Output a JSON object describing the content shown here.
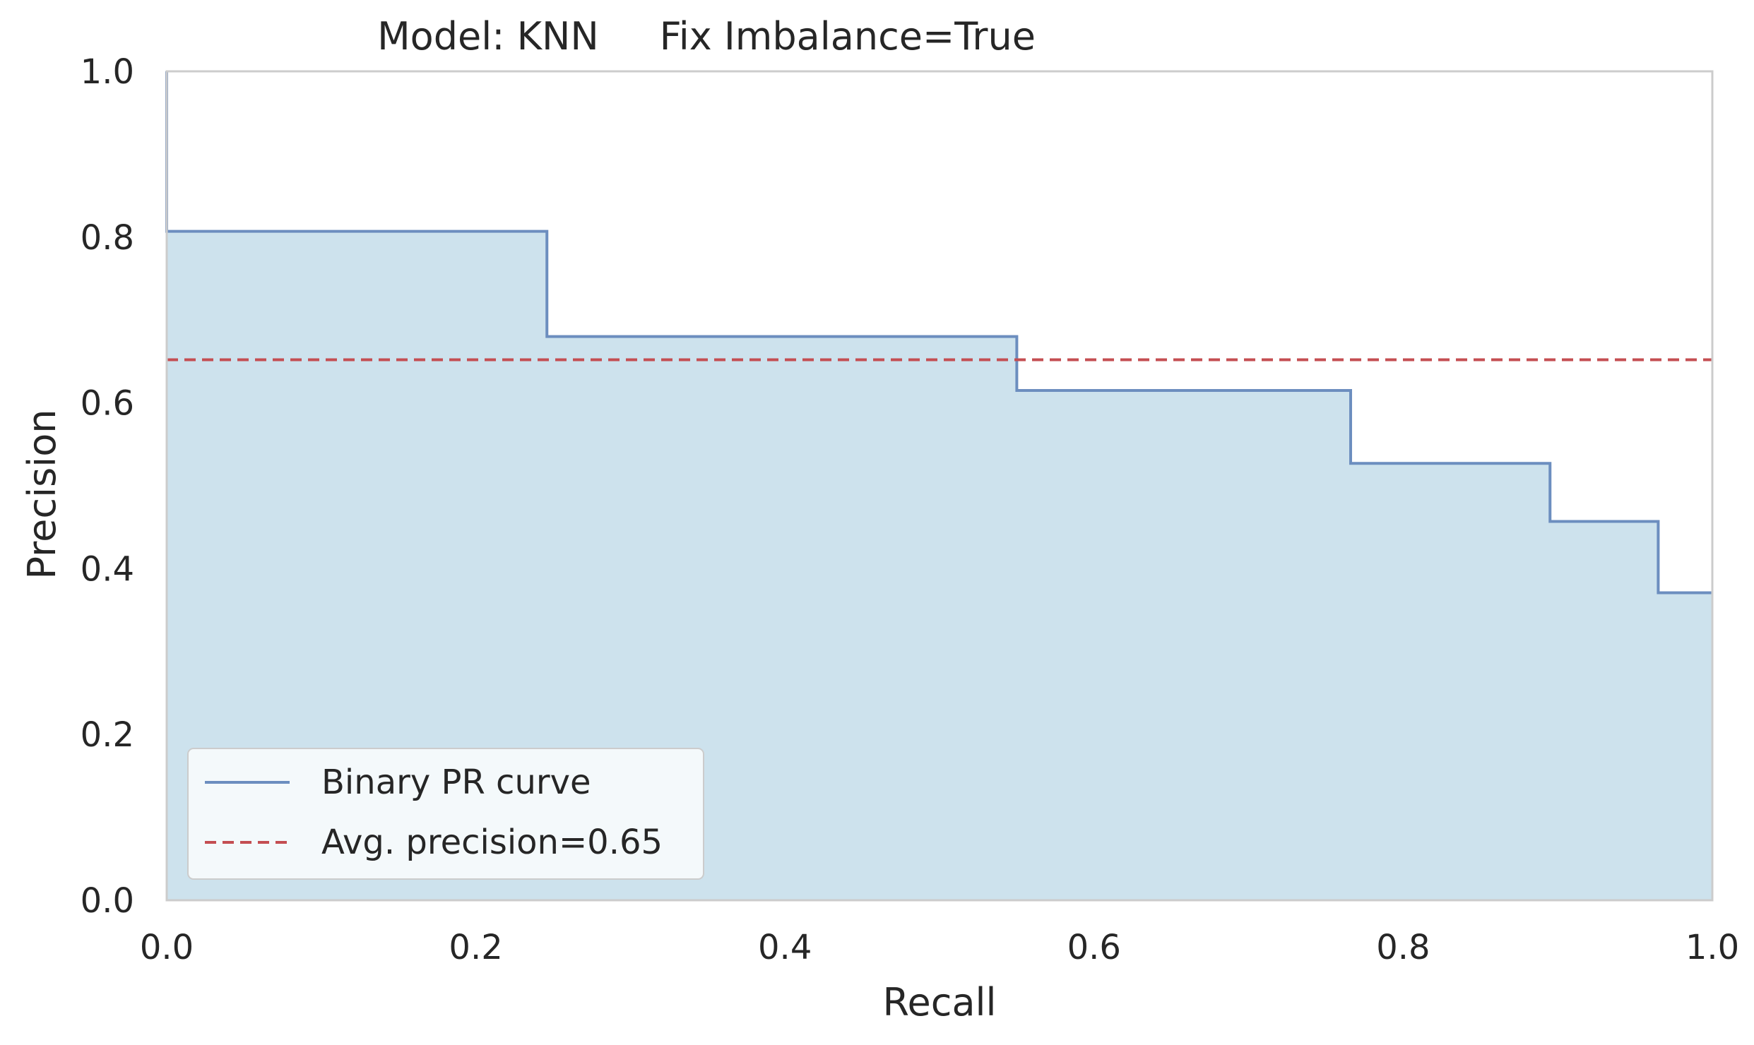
{
  "chart_data": {
    "type": "area",
    "title": "Model: KNN     Fix Imbalance=True",
    "xlabel": "Recall",
    "ylabel": "Precision",
    "xlim": [
      0.0,
      1.0
    ],
    "ylim": [
      0.0,
      1.0
    ],
    "xticks": [
      "0.0",
      "0.2",
      "0.4",
      "0.6",
      "0.8",
      "1.0"
    ],
    "yticks": [
      "0.0",
      "0.2",
      "0.4",
      "0.6",
      "0.8",
      "1.0"
    ],
    "grid": false,
    "legend_position": "lower-left",
    "series": [
      {
        "name": "Binary PR curve",
        "kind": "step",
        "color": "#6c8ebf",
        "fill_color": "#cde2ed",
        "recall": [
          0.0,
          0.0,
          0.246,
          0.246,
          0.55,
          0.55,
          0.766,
          0.766,
          0.895,
          0.895,
          0.965,
          0.965,
          1.0
        ],
        "precision": [
          1.0,
          0.807,
          0.807,
          0.68,
          0.68,
          0.615,
          0.615,
          0.527,
          0.527,
          0.457,
          0.457,
          0.371,
          0.371
        ]
      }
    ],
    "reference_lines": [
      {
        "name": "Avg. precision=0.65",
        "kind": "hline",
        "value": 0.652,
        "color": "#c44e52",
        "dashed": true
      }
    ]
  }
}
